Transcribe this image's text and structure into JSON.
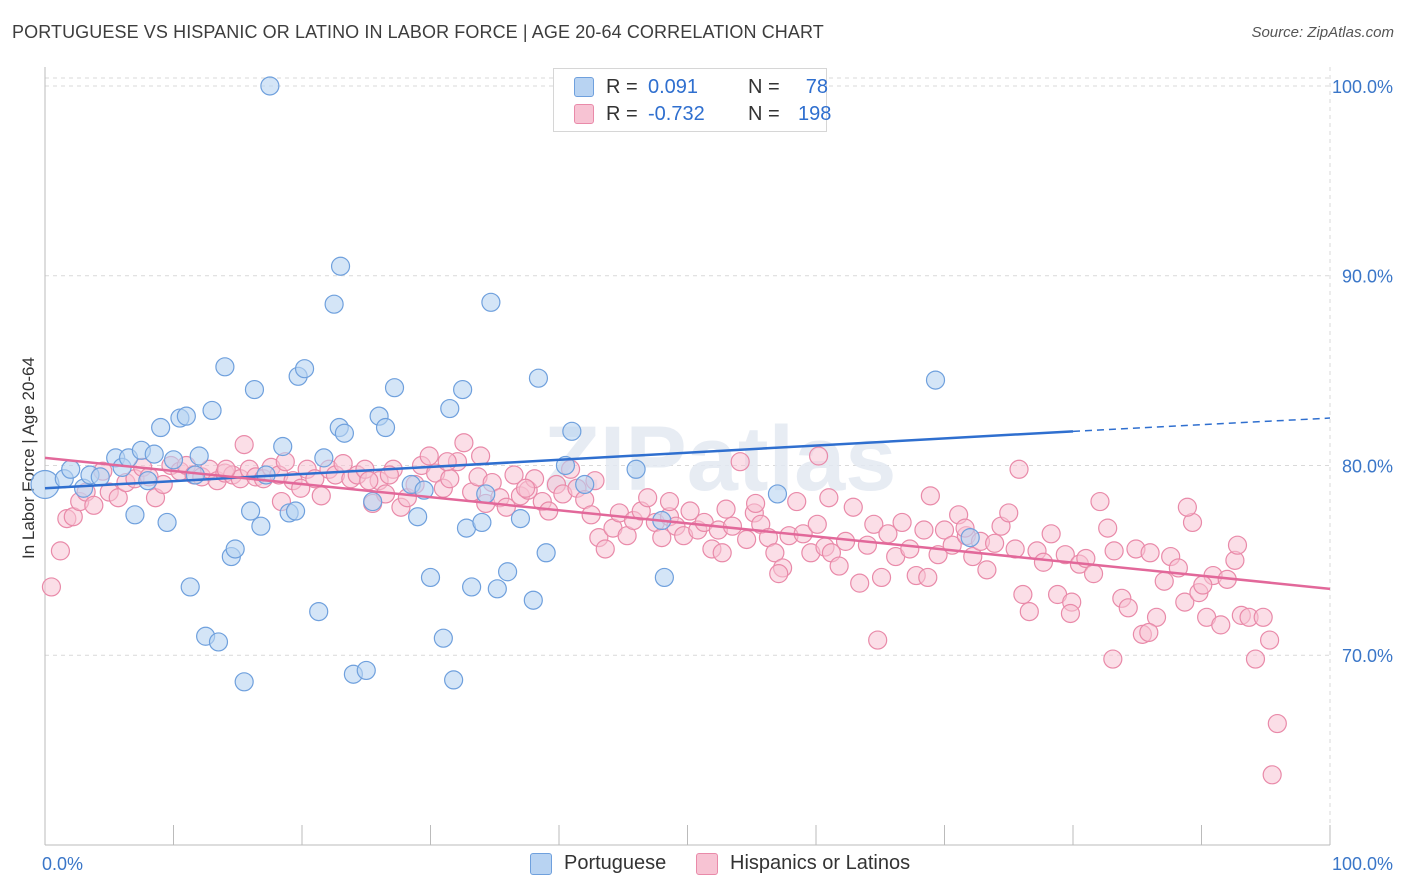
{
  "header": {
    "title": "PORTUGUESE VS HISPANIC OR LATINO IN LABOR FORCE | AGE 20-64 CORRELATION CHART",
    "source": "Source: ZipAtlas.com"
  },
  "legend": {
    "rows": [
      {
        "r_label": "R =",
        "r_value": "0.091",
        "n_label": "N =",
        "n_value": "78"
      },
      {
        "r_label": "R =",
        "r_value": "-0.732",
        "n_label": "N =",
        "n_value": "198"
      }
    ],
    "bottom": [
      "Portuguese",
      "Hispanics or Latinos"
    ]
  },
  "watermark": "ZIPatlas",
  "colors": {
    "blue_fill": "#b8d3f2",
    "blue_stroke": "#6fa0dd",
    "blue_line": "#2f6fcf",
    "pink_fill": "#f7c3d3",
    "pink_stroke": "#e98aa9",
    "pink_line": "#e2689a",
    "tick_label": "#3a76c8",
    "grid": "#d9d9d9"
  },
  "chart_data": {
    "type": "scatter",
    "title": "PORTUGUESE VS HISPANIC OR LATINO IN LABOR FORCE | AGE 20-64 CORRELATION CHART",
    "xlabel": "",
    "ylabel": "In Labor Force | Age 20-64",
    "xlim": [
      0,
      100
    ],
    "ylim": [
      60,
      101
    ],
    "x_tick_labels": [
      "0.0%",
      "100.0%"
    ],
    "y_ticks": [
      70,
      80,
      90,
      100
    ],
    "y_tick_labels": [
      "70.0%",
      "80.0%",
      "90.0%",
      "100.0%"
    ],
    "grid": true,
    "legend_position": "top-center",
    "series": [
      {
        "name": "Portuguese",
        "r": 0.091,
        "n": 78,
        "trend": {
          "x": [
            0,
            80
          ],
          "y": [
            78.8,
            81.8
          ],
          "dashed_to": [
            100,
            82.5
          ]
        },
        "points": [
          [
            0.0,
            79.0
          ],
          [
            1.5,
            79.3
          ],
          [
            2.0,
            79.8
          ],
          [
            3.0,
            78.8
          ],
          [
            3.5,
            79.5
          ],
          [
            4.3,
            79.4
          ],
          [
            5.5,
            80.4
          ],
          [
            6.0,
            79.9
          ],
          [
            6.5,
            80.4
          ],
          [
            7.0,
            77.4
          ],
          [
            7.5,
            80.8
          ],
          [
            8.5,
            80.6
          ],
          [
            9.0,
            82.0
          ],
          [
            9.5,
            77.0
          ],
          [
            10.0,
            80.3
          ],
          [
            10.5,
            82.5
          ],
          [
            11.0,
            82.6
          ],
          [
            11.3,
            73.6
          ],
          [
            11.7,
            79.5
          ],
          [
            12.0,
            80.5
          ],
          [
            12.5,
            71.0
          ],
          [
            13.0,
            82.9
          ],
          [
            13.5,
            70.7
          ],
          [
            14.0,
            85.2
          ],
          [
            14.5,
            75.2
          ],
          [
            14.8,
            75.6
          ],
          [
            15.5,
            68.6
          ],
          [
            16.0,
            77.6
          ],
          [
            16.3,
            84.0
          ],
          [
            16.8,
            76.8
          ],
          [
            17.5,
            100.0
          ],
          [
            18.5,
            81.0
          ],
          [
            19.0,
            77.5
          ],
          [
            19.5,
            77.6
          ],
          [
            19.7,
            84.7
          ],
          [
            20.2,
            85.1
          ],
          [
            21.3,
            72.3
          ],
          [
            21.7,
            80.4
          ],
          [
            22.5,
            88.5
          ],
          [
            22.9,
            82.0
          ],
          [
            23.0,
            90.5
          ],
          [
            23.3,
            81.7
          ],
          [
            24.0,
            69.0
          ],
          [
            25.0,
            69.2
          ],
          [
            26.0,
            82.6
          ],
          [
            26.5,
            82.0
          ],
          [
            27.2,
            84.1
          ],
          [
            28.5,
            79.0
          ],
          [
            29.0,
            77.3
          ],
          [
            29.5,
            78.7
          ],
          [
            30.0,
            74.1
          ],
          [
            31.0,
            70.9
          ],
          [
            31.5,
            83.0
          ],
          [
            31.8,
            68.7
          ],
          [
            32.5,
            84.0
          ],
          [
            32.8,
            76.7
          ],
          [
            33.2,
            73.6
          ],
          [
            34.0,
            77.0
          ],
          [
            34.7,
            88.6
          ],
          [
            35.2,
            73.5
          ],
          [
            36.0,
            74.4
          ],
          [
            37.0,
            77.2
          ],
          [
            38.0,
            72.9
          ],
          [
            38.4,
            84.6
          ],
          [
            39.0,
            75.4
          ],
          [
            41.0,
            81.8
          ],
          [
            48.0,
            77.1
          ],
          [
            48.2,
            74.1
          ],
          [
            69.3,
            84.5
          ],
          [
            72.0,
            76.2
          ],
          [
            46.0,
            79.8
          ],
          [
            42.0,
            79.0
          ],
          [
            34.3,
            78.5
          ],
          [
            8.0,
            79.2
          ],
          [
            17.2,
            79.5
          ],
          [
            25.5,
            78.1
          ],
          [
            40.5,
            80.0
          ],
          [
            57.0,
            78.5
          ]
        ]
      },
      {
        "name": "Hispanics or Latinos",
        "r": -0.732,
        "n": 198,
        "trend": {
          "x": [
            0,
            100
          ],
          "y": [
            80.4,
            73.5
          ]
        },
        "points": [
          [
            0.5,
            73.6
          ],
          [
            1.2,
            75.5
          ],
          [
            1.7,
            77.2
          ],
          [
            2.2,
            77.3
          ],
          [
            2.7,
            78.1
          ],
          [
            3.2,
            78.6
          ],
          [
            3.8,
            77.9
          ],
          [
            4.5,
            79.7
          ],
          [
            5.0,
            78.6
          ],
          [
            5.7,
            78.3
          ],
          [
            6.3,
            79.1
          ],
          [
            7.0,
            79.3
          ],
          [
            7.6,
            79.9
          ],
          [
            8.1,
            79.4
          ],
          [
            8.6,
            78.3
          ],
          [
            9.2,
            79.0
          ],
          [
            9.8,
            80.0
          ],
          [
            10.5,
            79.7
          ],
          [
            11.0,
            80.0
          ],
          [
            11.6,
            79.5
          ],
          [
            12.2,
            79.4
          ],
          [
            12.8,
            79.8
          ],
          [
            13.4,
            79.2
          ],
          [
            14.0,
            79.6
          ],
          [
            14.6,
            79.5
          ],
          [
            15.2,
            79.3
          ],
          [
            15.5,
            81.1
          ],
          [
            15.9,
            79.8
          ],
          [
            16.4,
            79.4
          ],
          [
            17.0,
            79.3
          ],
          [
            17.6,
            79.9
          ],
          [
            18.2,
            79.5
          ],
          [
            18.7,
            80.2
          ],
          [
            19.3,
            79.2
          ],
          [
            19.9,
            78.8
          ],
          [
            20.4,
            79.8
          ],
          [
            21.0,
            79.3
          ],
          [
            21.5,
            78.4
          ],
          [
            22.1,
            79.8
          ],
          [
            22.6,
            79.5
          ],
          [
            23.2,
            80.1
          ],
          [
            23.8,
            79.3
          ],
          [
            24.3,
            79.5
          ],
          [
            24.9,
            79.8
          ],
          [
            25.5,
            78.0
          ],
          [
            26.0,
            79.2
          ],
          [
            26.5,
            78.5
          ],
          [
            27.1,
            79.8
          ],
          [
            27.7,
            77.8
          ],
          [
            28.2,
            78.3
          ],
          [
            28.8,
            79.0
          ],
          [
            29.3,
            80.0
          ],
          [
            29.9,
            80.5
          ],
          [
            30.4,
            79.6
          ],
          [
            31.0,
            78.8
          ],
          [
            31.5,
            79.3
          ],
          [
            32.1,
            80.2
          ],
          [
            32.6,
            81.2
          ],
          [
            33.2,
            78.6
          ],
          [
            33.7,
            79.4
          ],
          [
            34.3,
            78.0
          ],
          [
            34.8,
            79.1
          ],
          [
            35.4,
            78.3
          ],
          [
            35.9,
            77.8
          ],
          [
            36.5,
            79.5
          ],
          [
            37.0,
            78.4
          ],
          [
            37.6,
            78.7
          ],
          [
            38.1,
            79.3
          ],
          [
            38.7,
            78.1
          ],
          [
            39.2,
            77.6
          ],
          [
            39.8,
            79.0
          ],
          [
            40.3,
            78.5
          ],
          [
            40.9,
            79.8
          ],
          [
            41.4,
            78.8
          ],
          [
            42.0,
            78.2
          ],
          [
            42.5,
            77.4
          ],
          [
            43.1,
            76.2
          ],
          [
            43.6,
            75.6
          ],
          [
            44.2,
            76.7
          ],
          [
            44.7,
            77.5
          ],
          [
            45.3,
            76.3
          ],
          [
            45.8,
            77.1
          ],
          [
            46.4,
            77.6
          ],
          [
            46.9,
            78.3
          ],
          [
            47.5,
            77.0
          ],
          [
            48.0,
            76.2
          ],
          [
            48.6,
            77.3
          ],
          [
            49.1,
            76.8
          ],
          [
            49.7,
            76.3
          ],
          [
            50.2,
            77.6
          ],
          [
            50.8,
            76.6
          ],
          [
            51.3,
            77.0
          ],
          [
            51.9,
            75.6
          ],
          [
            52.4,
            76.6
          ],
          [
            53.0,
            77.7
          ],
          [
            53.5,
            76.8
          ],
          [
            54.1,
            80.2
          ],
          [
            54.6,
            76.1
          ],
          [
            55.2,
            77.5
          ],
          [
            55.7,
            76.9
          ],
          [
            56.3,
            76.2
          ],
          [
            56.8,
            75.4
          ],
          [
            57.4,
            74.6
          ],
          [
            57.9,
            76.3
          ],
          [
            58.5,
            78.1
          ],
          [
            59.0,
            76.4
          ],
          [
            59.6,
            75.4
          ],
          [
            60.1,
            76.9
          ],
          [
            60.7,
            75.7
          ],
          [
            61.2,
            75.4
          ],
          [
            61.8,
            74.7
          ],
          [
            62.3,
            76.0
          ],
          [
            62.9,
            77.8
          ],
          [
            63.4,
            73.8
          ],
          [
            64.0,
            75.8
          ],
          [
            64.5,
            76.9
          ],
          [
            65.1,
            74.1
          ],
          [
            65.6,
            76.4
          ],
          [
            66.2,
            75.2
          ],
          [
            66.7,
            77.0
          ],
          [
            67.3,
            75.6
          ],
          [
            67.8,
            74.2
          ],
          [
            68.4,
            76.6
          ],
          [
            68.9,
            78.4
          ],
          [
            69.5,
            75.3
          ],
          [
            70.0,
            76.6
          ],
          [
            70.6,
            75.8
          ],
          [
            71.1,
            77.4
          ],
          [
            71.7,
            76.3
          ],
          [
            72.2,
            75.2
          ],
          [
            72.8,
            76.0
          ],
          [
            73.3,
            74.5
          ],
          [
            73.9,
            75.9
          ],
          [
            74.4,
            76.8
          ],
          [
            75.0,
            77.5
          ],
          [
            75.5,
            75.6
          ],
          [
            76.1,
            73.2
          ],
          [
            76.6,
            72.3
          ],
          [
            77.2,
            75.5
          ],
          [
            77.7,
            74.9
          ],
          [
            78.3,
            76.4
          ],
          [
            78.8,
            73.2
          ],
          [
            79.4,
            75.3
          ],
          [
            79.9,
            72.8
          ],
          [
            80.5,
            74.8
          ],
          [
            81.0,
            75.1
          ],
          [
            81.6,
            74.3
          ],
          [
            82.1,
            78.1
          ],
          [
            82.7,
            76.7
          ],
          [
            83.2,
            75.5
          ],
          [
            83.8,
            73.0
          ],
          [
            84.3,
            72.5
          ],
          [
            84.9,
            75.6
          ],
          [
            85.4,
            71.1
          ],
          [
            86.0,
            75.4
          ],
          [
            86.5,
            72.0
          ],
          [
            87.1,
            73.9
          ],
          [
            87.6,
            75.2
          ],
          [
            88.2,
            74.6
          ],
          [
            88.7,
            72.8
          ],
          [
            89.3,
            77.0
          ],
          [
            89.8,
            73.3
          ],
          [
            90.4,
            72.0
          ],
          [
            90.9,
            74.2
          ],
          [
            91.5,
            71.6
          ],
          [
            92.0,
            74.0
          ],
          [
            92.6,
            75.0
          ],
          [
            93.1,
            72.1
          ],
          [
            93.7,
            72.0
          ],
          [
            94.2,
            69.8
          ],
          [
            94.8,
            72.0
          ],
          [
            95.3,
            70.8
          ],
          [
            95.9,
            66.4
          ],
          [
            95.5,
            63.7
          ],
          [
            64.8,
            70.8
          ],
          [
            68.7,
            74.1
          ],
          [
            71.6,
            76.7
          ],
          [
            75.8,
            79.8
          ],
          [
            79.8,
            72.2
          ],
          [
            85.9,
            71.2
          ],
          [
            88.9,
            77.8
          ],
          [
            61.0,
            78.3
          ],
          [
            55.3,
            78.0
          ],
          [
            48.6,
            78.1
          ],
          [
            42.8,
            79.2
          ],
          [
            37.4,
            78.8
          ],
          [
            31.3,
            80.2
          ],
          [
            25.2,
            79.2
          ],
          [
            33.9,
            80.5
          ],
          [
            26.8,
            79.5
          ],
          [
            18.4,
            78.1
          ],
          [
            14.1,
            79.8
          ],
          [
            83.1,
            69.8
          ],
          [
            60.2,
            80.5
          ],
          [
            90.1,
            73.7
          ],
          [
            92.8,
            75.8
          ],
          [
            57.1,
            74.3
          ],
          [
            52.7,
            75.4
          ]
        ]
      }
    ]
  }
}
